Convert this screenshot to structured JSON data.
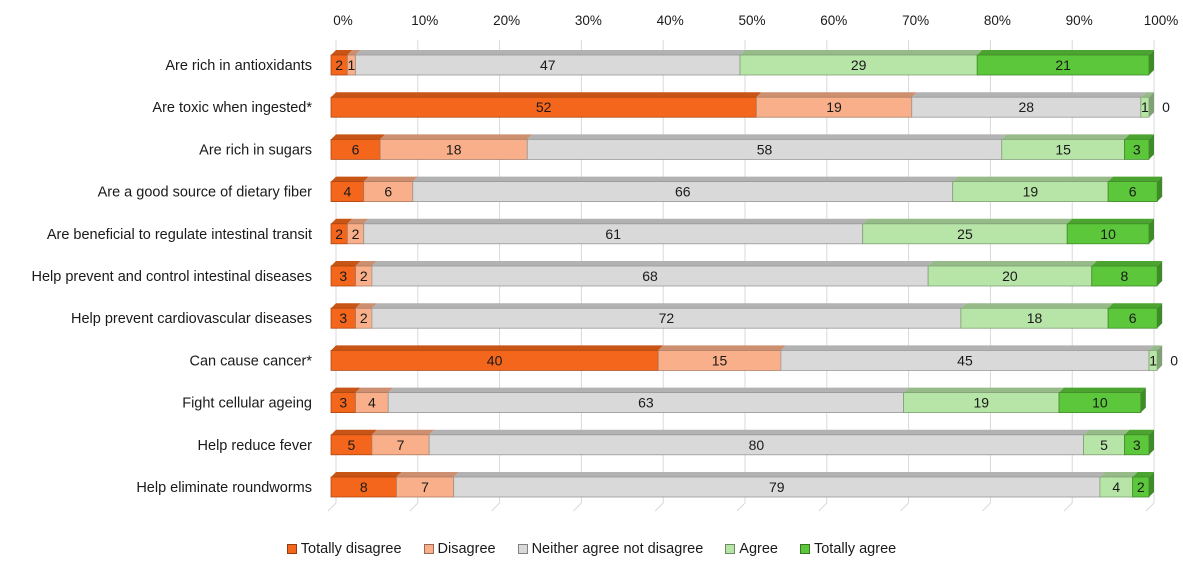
{
  "chart_data": {
    "type": "bar",
    "stacked": true,
    "percent_stacked": true,
    "orientation": "horizontal",
    "title": "",
    "xlabel": "",
    "ylabel": "",
    "xlim": [
      0,
      100
    ],
    "x_ticks": [
      "0%",
      "10%",
      "20%",
      "30%",
      "40%",
      "50%",
      "60%",
      "70%",
      "80%",
      "90%",
      "100%"
    ],
    "categories": [
      "Are rich in antioxidants",
      "Are toxic when ingested*",
      "Are rich in sugars",
      "Are a good source of dietary fiber",
      "Are beneficial to regulate intestinal transit",
      "Help prevent and control intestinal diseases",
      "Help prevent cardiovascular diseases",
      "Can cause cancer*",
      "Fight cellular ageing",
      "Help reduce fever",
      "Help eliminate roundworms"
    ],
    "series": [
      {
        "name": "Totally disagree",
        "color": "#f4661b",
        "values": [
          2,
          52,
          6,
          4,
          2,
          3,
          3,
          40,
          3,
          5,
          8
        ]
      },
      {
        "name": "Disagree",
        "color": "#f9b08a",
        "values": [
          1,
          19,
          18,
          6,
          2,
          2,
          2,
          15,
          4,
          7,
          7
        ]
      },
      {
        "name": "Neither agree not disagree",
        "color": "#d9d9d9",
        "values": [
          47,
          28,
          58,
          66,
          61,
          68,
          72,
          45,
          63,
          80,
          79
        ]
      },
      {
        "name": "Agree",
        "color": "#b7e4a7",
        "values": [
          29,
          1,
          15,
          19,
          25,
          20,
          18,
          1,
          19,
          5,
          4
        ]
      },
      {
        "name": "Totally agree",
        "color": "#5cc73b",
        "values": [
          21,
          0,
          3,
          6,
          10,
          8,
          6,
          0,
          10,
          3,
          2
        ]
      }
    ],
    "legend_position": "bottom",
    "grid": true
  }
}
